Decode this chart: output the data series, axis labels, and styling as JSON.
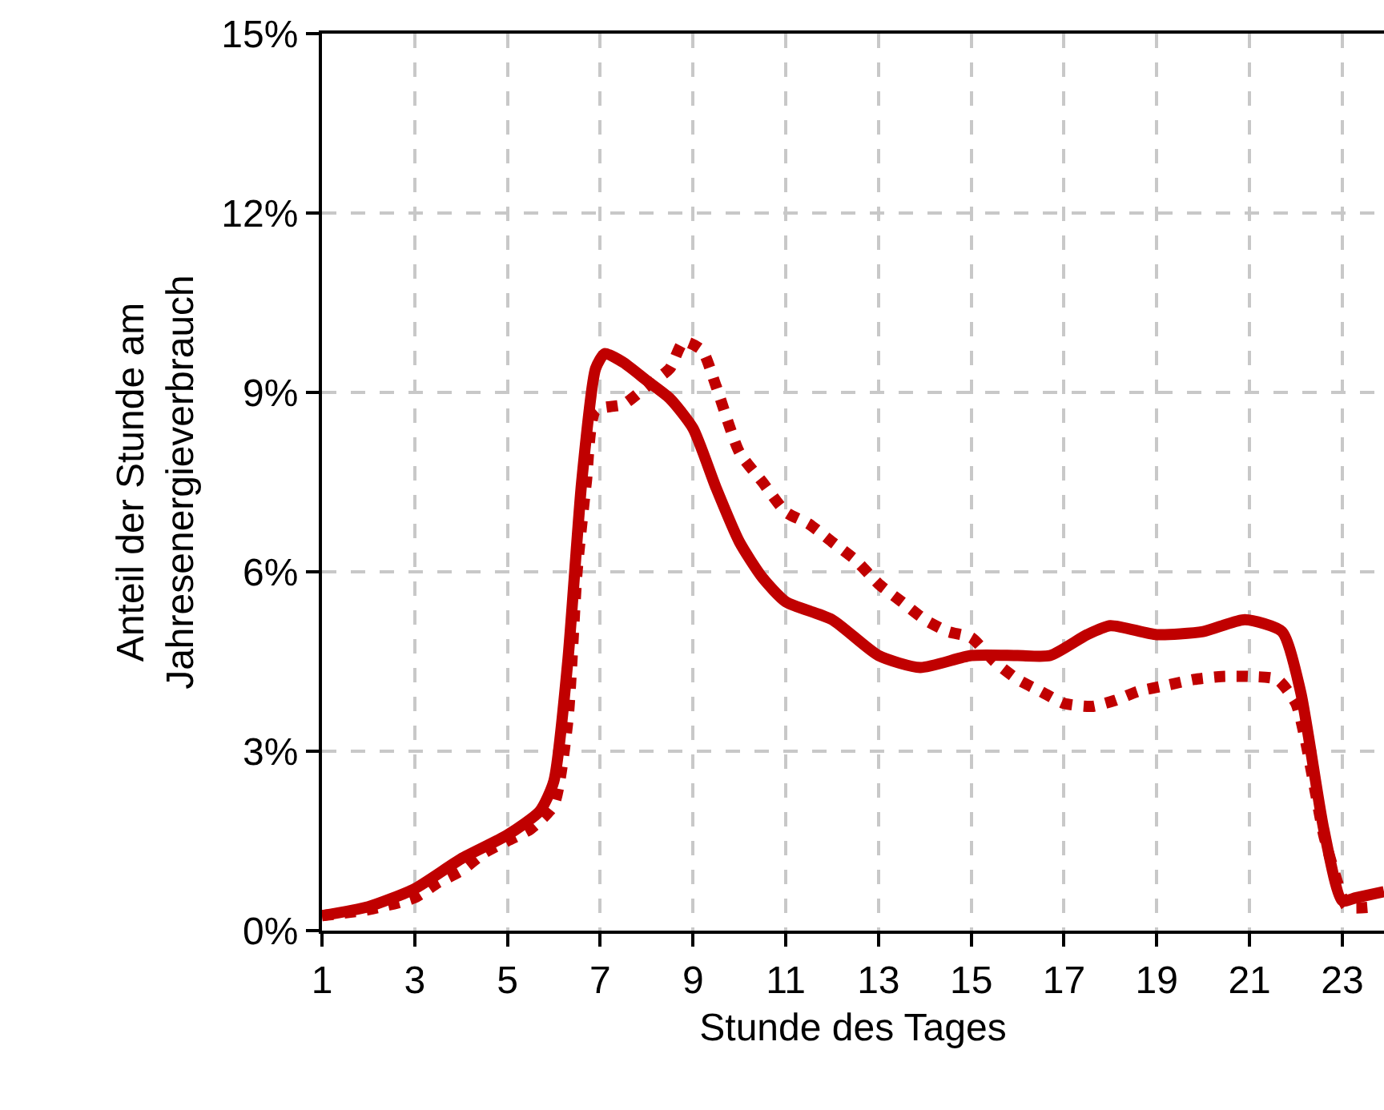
{
  "chart_data": {
    "type": "line",
    "xlabel": "Stunde des Tages",
    "ylabel": "Anteil der Stunde am\nJahresenergieverbrauch",
    "xlim": [
      1,
      23.9
    ],
    "xticks": [
      1,
      3,
      5,
      7,
      9,
      11,
      13,
      15,
      17,
      19,
      21,
      23
    ],
    "ylim": [
      0,
      15
    ],
    "yticks": [
      {
        "value": 0,
        "label": "0%"
      },
      {
        "value": 3,
        "label": "3%"
      },
      {
        "value": 6,
        "label": "6%"
      },
      {
        "value": 9,
        "label": "9%"
      },
      {
        "value": 12,
        "label": "12%"
      },
      {
        "value": 15,
        "label": "15%"
      }
    ],
    "grid": true,
    "marker": "none",
    "series": [
      {
        "color": "#c00000",
        "line_style": "solid",
        "x": [
          1,
          2,
          3,
          4,
          5,
          5.7,
          6,
          6.3,
          6.6,
          6.9,
          7.1,
          7.5,
          8,
          8.5,
          9,
          9.5,
          10,
          10.5,
          11,
          12,
          13,
          13.9,
          15,
          16,
          16.7,
          17.5,
          18,
          19,
          20,
          20.9,
          21.7,
          22.1,
          22.6,
          23,
          23.3,
          23.9
        ],
        "values": [
          0.25,
          0.4,
          0.7,
          1.2,
          1.6,
          2.0,
          2.5,
          4.5,
          7.5,
          9.4,
          9.65,
          9.5,
          9.2,
          8.9,
          8.4,
          7.4,
          6.5,
          5.9,
          5.5,
          5.2,
          4.6,
          4.4,
          4.6,
          4.6,
          4.6,
          4.95,
          5.1,
          4.95,
          5.0,
          5.2,
          5.0,
          4.0,
          1.7,
          0.5,
          0.55,
          0.65
        ]
      },
      {
        "color": "#c00000",
        "line_style": "dotted",
        "x": [
          1,
          2,
          3,
          3.5,
          4,
          4.5,
          5,
          5.5,
          6,
          6.3,
          6.5,
          6.7,
          6.9,
          7.5,
          8,
          8.5,
          8.8,
          9.2,
          9.5,
          10,
          10.5,
          11,
          11.5,
          12,
          12.5,
          13,
          13.5,
          14,
          14.5,
          15,
          15.5,
          16,
          16.5,
          17,
          17.6,
          18.1,
          18.6,
          19.2,
          19.8,
          20.4,
          21,
          21.6,
          22,
          22.2,
          22.4,
          22.6,
          22.9,
          23.1,
          23.7
        ],
        "values": [
          0.25,
          0.35,
          0.55,
          0.8,
          1.0,
          1.3,
          1.5,
          1.7,
          2.1,
          3.5,
          6.0,
          7.5,
          8.7,
          8.8,
          9.1,
          9.4,
          9.85,
          9.7,
          9.1,
          8.0,
          7.5,
          7.0,
          6.8,
          6.5,
          6.2,
          5.8,
          5.5,
          5.2,
          5.0,
          4.9,
          4.5,
          4.2,
          4.0,
          3.8,
          3.75,
          3.85,
          4.0,
          4.1,
          4.2,
          4.25,
          4.25,
          4.2,
          3.8,
          3.2,
          2.4,
          1.6,
          0.8,
          0.4,
          0.4
        ]
      }
    ]
  }
}
